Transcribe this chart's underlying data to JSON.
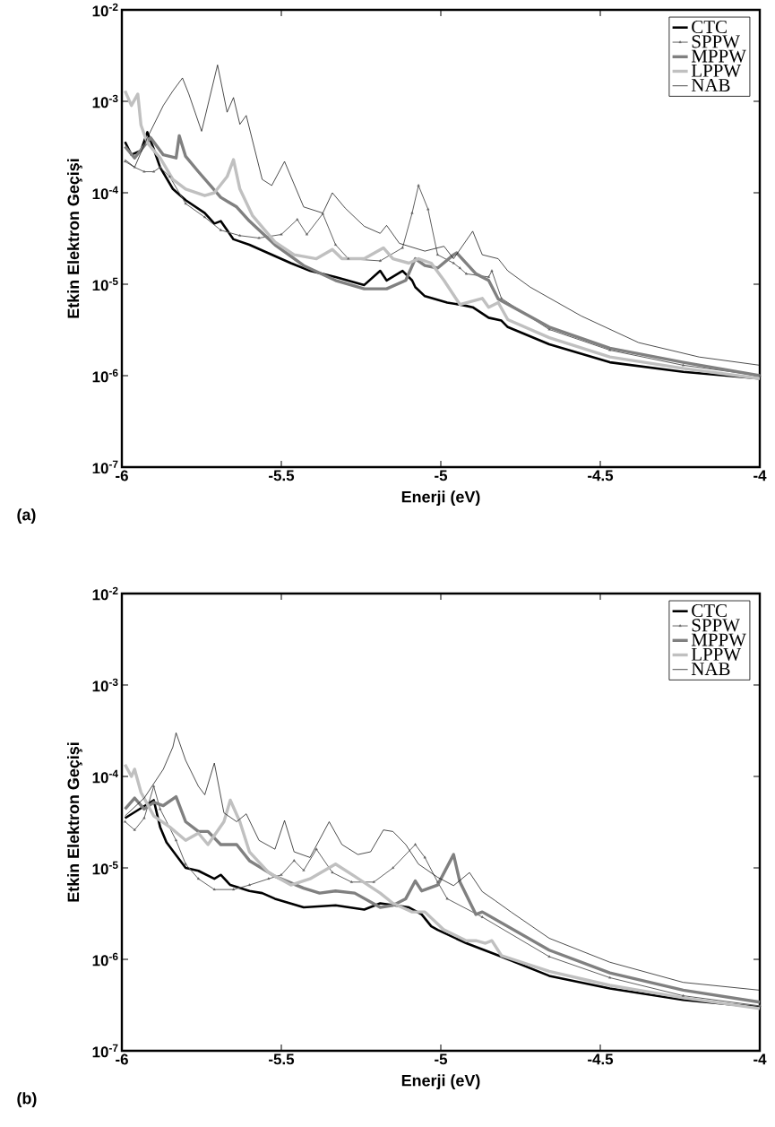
{
  "chart_data": [
    {
      "type": "line",
      "xlabel": "Enerji (eV)",
      "ylabel": "Etkin Elektron Geçişi",
      "annotations": [
        "(a)"
      ],
      "log": "y",
      "legend": "top right",
      "xlim": [
        -6,
        -4
      ],
      "ylim": [
        1e-07,
        0.01
      ],
      "xticks": [
        -6,
        -5.5,
        -5,
        -4.5,
        -4
      ],
      "yticks": [
        {
          "value": 1e-07,
          "label": "10$^{-7}$"
        },
        {
          "value": 1e-06,
          "label": "10$^{-6}$"
        },
        {
          "value": 1e-05,
          "label": "10$^{-5}$"
        },
        {
          "value": 0.0001,
          "label": "10$^{-4}$"
        },
        {
          "value": 0.001,
          "label": "10$^{-3}$"
        },
        {
          "value": 0.01,
          "label": "10$^{-2}$"
        }
      ],
      "series": [
        {
          "name": "CTC",
          "color": "#000000",
          "x": [
            -5.99,
            -5.97,
            -5.94,
            -5.92,
            -5.9,
            -5.88,
            -5.84,
            -5.8,
            -5.74,
            -5.71,
            -5.69,
            -5.65,
            -5.6,
            -5.47,
            -5.41,
            -5.33,
            -5.24,
            -5.19,
            -5.17,
            -5.12,
            -5.09,
            -5.08,
            -5.05,
            -4.98,
            -4.93,
            -4.9,
            -4.85,
            -4.81,
            -4.79,
            -4.66,
            -4.47,
            -4.24,
            -4.0
          ],
          "values": [
            0.00036,
            0.00026,
            0.00029,
            0.00046,
            0.0003,
            0.00019,
            0.00011,
            8.3e-05,
            6e-05,
            4.6e-05,
            4.9e-05,
            3.1e-05,
            2.7e-05,
            1.7e-05,
            1.4e-05,
            1.2e-05,
            9.8e-06,
            1.4e-05,
            1.1e-05,
            1.4e-05,
            1.1e-05,
            9.3e-06,
            7.4e-06,
            6.3e-06,
            5.9e-06,
            5.6e-06,
            4.3e-06,
            4e-06,
            3.4e-06,
            2.2e-06,
            1.4e-06,
            1.1e-06,
            9.3e-07
          ]
        },
        {
          "name": "SPPW",
          "color": "#606060",
          "marker": "triangle",
          "x": [
            -5.99,
            -5.96,
            -5.93,
            -5.9,
            -5.88,
            -5.85,
            -5.8,
            -5.74,
            -5.69,
            -5.63,
            -5.57,
            -5.5,
            -5.45,
            -5.42,
            -5.37,
            -5.33,
            -5.29,
            -5.19,
            -5.12,
            -5.09,
            -5.07,
            -5.04,
            -5.01,
            -4.96,
            -4.94,
            -4.92,
            -4.85,
            -4.84,
            -4.81,
            -4.66,
            -4.47,
            -4.24,
            -4.0
          ],
          "values": [
            0.00022,
            0.00019,
            0.00017,
            0.00017,
            0.00019,
            0.00015,
            7.6e-05,
            5.4e-05,
            3.9e-05,
            3.4e-05,
            3.2e-05,
            3.5e-05,
            5.1e-05,
            3.5e-05,
            5.9e-05,
            2.7e-05,
            1.9e-05,
            1.8e-05,
            2.5e-05,
            6e-05,
            0.00012,
            6.6e-05,
            2.1e-05,
            1.7e-05,
            1.5e-05,
            1.3e-05,
            1.2e-05,
            1.4e-05,
            7e-06,
            3.2e-06,
            1.9e-06,
            1.3e-06,
            1e-06
          ]
        },
        {
          "name": "MPPW",
          "color": "#808080",
          "x": [
            -5.99,
            -5.96,
            -5.91,
            -5.87,
            -5.83,
            -5.82,
            -5.8,
            -5.76,
            -5.69,
            -5.64,
            -5.6,
            -5.52,
            -5.43,
            -5.33,
            -5.24,
            -5.17,
            -5.11,
            -5.08,
            -5.05,
            -5.01,
            -4.96,
            -4.95,
            -4.89,
            -4.85,
            -4.82,
            -4.66,
            -4.47,
            -4.24,
            -4.0
          ],
          "values": [
            0.00032,
            0.00024,
            0.0004,
            0.00026,
            0.00024,
            0.00042,
            0.00025,
            0.00017,
            8.9e-05,
            7e-05,
            4.9e-05,
            2.7e-05,
            1.6e-05,
            1.1e-05,
            8.9e-06,
            8.9e-06,
            1.1e-05,
            1.9e-05,
            1.6e-05,
            1.5e-05,
            2.1e-05,
            2.2e-05,
            1.3e-05,
            1.1e-05,
            6.9e-06,
            3.4e-06,
            2e-06,
            1.4e-06,
            1e-06
          ]
        },
        {
          "name": "LPPW",
          "color": "#c0c0c0",
          "x": [
            -5.99,
            -5.97,
            -5.95,
            -5.94,
            -5.92,
            -5.88,
            -5.84,
            -5.8,
            -5.74,
            -5.71,
            -5.67,
            -5.65,
            -5.63,
            -5.59,
            -5.52,
            -5.46,
            -5.39,
            -5.34,
            -5.31,
            -5.24,
            -5.18,
            -5.15,
            -5.1,
            -5.07,
            -5.03,
            -4.99,
            -4.94,
            -4.87,
            -4.85,
            -4.82,
            -4.79,
            -4.66,
            -4.47,
            -4.24,
            -4.0
          ],
          "values": [
            0.0013,
            0.0009,
            0.0012,
            0.00055,
            0.00035,
            0.00024,
            0.00014,
            0.00011,
            9.3e-05,
            0.0001,
            0.00015,
            0.00023,
            0.00011,
            5.6e-05,
            2.9e-05,
            2.1e-05,
            1.9e-05,
            2.4e-05,
            1.9e-05,
            1.9e-05,
            2.5e-05,
            1.9e-05,
            1.7e-05,
            1.9e-05,
            1.7e-05,
            1.1e-05,
            6e-06,
            7e-06,
            5.6e-06,
            6.3e-06,
            4.1e-06,
            2.6e-06,
            1.6e-06,
            1.2e-06,
            9.3e-07
          ]
        },
        {
          "name": "NAB",
          "color": "#000000",
          "x": [
            -5.99,
            -5.96,
            -5.92,
            -5.87,
            -5.84,
            -5.81,
            -5.79,
            -5.75,
            -5.7,
            -5.67,
            -5.65,
            -5.63,
            -5.61,
            -5.56,
            -5.53,
            -5.49,
            -5.43,
            -5.37,
            -5.34,
            -5.3,
            -5.24,
            -5.19,
            -5.17,
            -5.13,
            -5.05,
            -4.99,
            -4.96,
            -4.9,
            -4.87,
            -4.82,
            -4.79,
            -4.72,
            -4.56,
            -4.38,
            -4.19,
            -4.0
          ],
          "values": [
            0.00023,
            0.00019,
            0.0004,
            0.0009,
            0.0013,
            0.0018,
            0.0012,
            0.00047,
            0.0025,
            0.00076,
            0.0011,
            0.00056,
            0.0007,
            0.00014,
            0.00012,
            0.00022,
            7e-05,
            6e-05,
            0.0001,
            6.8e-05,
            4.3e-05,
            3.6e-05,
            4.4e-05,
            2.8e-05,
            2.3e-05,
            2.6e-05,
            1.9e-05,
            3.8e-05,
            2.1e-05,
            1.9e-05,
            1.4e-05,
            9.3e-06,
            4.5e-06,
            2.3e-06,
            1.6e-06,
            1.3e-06
          ]
        }
      ]
    },
    {
      "type": "line",
      "xlabel": "Enerji (eV)",
      "ylabel": "Etkin Elektron Geçişi",
      "annotations": [
        "(b)"
      ],
      "log": "y",
      "legend": "top right",
      "xlim": [
        -6,
        -4
      ],
      "ylim": [
        1e-07,
        0.01
      ],
      "xticks": [
        -6,
        -5.5,
        -5,
        -4.5,
        -4
      ],
      "yticks": [
        {
          "value": 1e-07,
          "label": "10$^{-7}$"
        },
        {
          "value": 1e-06,
          "label": "10$^{-6}$"
        },
        {
          "value": 1e-05,
          "label": "10$^{-5}$"
        },
        {
          "value": 0.0001,
          "label": "10$^{-4}$"
        },
        {
          "value": 0.001,
          "label": "10$^{-3}$"
        },
        {
          "value": 0.01,
          "label": "10$^{-2}$"
        }
      ],
      "series": [
        {
          "name": "CTC",
          "color": "#000000",
          "x": [
            -5.99,
            -5.9,
            -5.88,
            -5.86,
            -5.8,
            -5.76,
            -5.71,
            -5.69,
            -5.66,
            -5.6,
            -5.56,
            -5.52,
            -5.43,
            -5.33,
            -5.24,
            -5.19,
            -5.1,
            -5.06,
            -5.03,
            -5.01,
            -4.92,
            -4.81,
            -4.66,
            -4.47,
            -4.24,
            -4.0
          ],
          "values": [
            3.5e-05,
            5.5e-05,
            2.8e-05,
            1.9e-05,
            1e-05,
            9.3e-06,
            7.6e-06,
            8.4e-06,
            6.5e-06,
            5.6e-06,
            5.3e-06,
            4.6e-06,
            3.7e-06,
            3.9e-06,
            3.5e-06,
            4.1e-06,
            3.7e-06,
            3.1e-06,
            2.3e-06,
            2.1e-06,
            1.5e-06,
            1.07e-06,
            6.6e-07,
            4.8e-07,
            3.6e-07,
            3e-07
          ]
        },
        {
          "name": "SPPW",
          "color": "#606060",
          "marker": "triangle",
          "x": [
            -5.99,
            -5.96,
            -5.93,
            -5.9,
            -5.88,
            -5.83,
            -5.8,
            -5.76,
            -5.71,
            -5.65,
            -5.6,
            -5.54,
            -5.5,
            -5.46,
            -5.43,
            -5.39,
            -5.34,
            -5.28,
            -5.21,
            -5.15,
            -5.08,
            -5.05,
            -5.01,
            -4.98,
            -4.87,
            -4.66,
            -4.47,
            -4.24,
            -4.0
          ],
          "values": [
            3.2e-05,
            2.6e-05,
            3.5e-05,
            7.8e-05,
            4.4e-05,
            2e-05,
            1.1e-05,
            7.6e-06,
            5.8e-06,
            5.8e-06,
            6.5e-06,
            7.6e-06,
            8.4e-06,
            1.2e-05,
            9.4e-06,
            1.6e-05,
            8.9e-06,
            7e-06,
            7e-06,
            1e-05,
            1.8e-05,
            1.3e-05,
            7e-06,
            4.6e-06,
            2.9e-06,
            1.07e-06,
            6.3e-07,
            4e-07,
            3.1e-07
          ]
        },
        {
          "name": "MPPW",
          "color": "#808080",
          "x": [
            -5.99,
            -5.96,
            -5.93,
            -5.9,
            -5.87,
            -5.83,
            -5.8,
            -5.76,
            -5.73,
            -5.69,
            -5.64,
            -5.6,
            -5.52,
            -5.43,
            -5.38,
            -5.33,
            -5.27,
            -5.19,
            -5.15,
            -5.11,
            -5.08,
            -5.06,
            -5.01,
            -4.96,
            -4.94,
            -4.89,
            -4.87,
            -4.66,
            -4.47,
            -4.24,
            -4.0
          ],
          "values": [
            4.4e-05,
            5.8e-05,
            4.4e-05,
            5.2e-05,
            4.8e-05,
            6e-05,
            3.2e-05,
            2.5e-05,
            2.5e-05,
            1.8e-05,
            1.8e-05,
            1.2e-05,
            8.1e-06,
            6e-06,
            5.3e-06,
            5.6e-06,
            5.3e-06,
            3.7e-06,
            3.9e-06,
            4.6e-06,
            7.2e-06,
            5.6e-06,
            6.5e-06,
            1.4e-05,
            7e-06,
            3.1e-06,
            3.3e-06,
            1.26e-06,
            7.1e-07,
            4.6e-07,
            3.4e-07
          ]
        },
        {
          "name": "LPPW",
          "color": "#c0c0c0",
          "x": [
            -5.99,
            -5.97,
            -5.96,
            -5.94,
            -5.9,
            -5.85,
            -5.8,
            -5.76,
            -5.73,
            -5.68,
            -5.66,
            -5.63,
            -5.6,
            -5.54,
            -5.47,
            -5.41,
            -5.33,
            -5.27,
            -5.19,
            -5.15,
            -5.09,
            -5.05,
            -4.99,
            -4.92,
            -4.89,
            -4.86,
            -4.84,
            -4.81,
            -4.66,
            -4.47,
            -4.24,
            -4.0
          ],
          "values": [
            0.000135,
            0.0001,
            0.00012,
            6.7e-05,
            3.7e-05,
            2.8e-05,
            2e-05,
            2.4e-05,
            1.8e-05,
            3.2e-05,
            5.5e-05,
            3.2e-05,
            1.5e-05,
            8.9e-06,
            6.5e-06,
            7.6e-06,
            1.1e-05,
            8.1e-06,
            5.3e-06,
            4.1e-06,
            3.3e-06,
            3.3e-06,
            2.1e-06,
            1.6e-06,
            1.6e-06,
            1.5e-06,
            1.6e-06,
            1.1e-06,
            7.4e-07,
            5.2e-07,
            3.8e-07,
            2.9e-07
          ]
        },
        {
          "name": "NAB",
          "color": "#000000",
          "x": [
            -5.99,
            -5.93,
            -5.87,
            -5.84,
            -5.83,
            -5.8,
            -5.76,
            -5.74,
            -5.71,
            -5.68,
            -5.64,
            -5.61,
            -5.57,
            -5.52,
            -5.49,
            -5.46,
            -5.41,
            -5.35,
            -5.31,
            -5.26,
            -5.22,
            -5.18,
            -5.15,
            -5.11,
            -5.07,
            -5.01,
            -4.96,
            -4.91,
            -4.87,
            -4.83,
            -4.78,
            -4.66,
            -4.47,
            -4.24,
            -4.0
          ],
          "values": [
            3.7e-05,
            5.8e-05,
            0.00012,
            0.00021,
            0.0003,
            0.00015,
            7.8e-05,
            6.3e-05,
            0.00014,
            4e-05,
            3.2e-05,
            3.9e-05,
            2e-05,
            1.6e-05,
            3.3e-05,
            1.5e-05,
            1.3e-05,
            3.2e-05,
            1.8e-05,
            1.4e-05,
            1.5e-05,
            2.6e-05,
            2.5e-05,
            1.8e-05,
            1.1e-05,
            7.9e-06,
            6.4e-06,
            8.9e-06,
            5.5e-06,
            4.4e-06,
            3.3e-06,
            1.7e-06,
            9.3e-07,
            5.6e-07,
            4.6e-07
          ]
        }
      ]
    }
  ]
}
